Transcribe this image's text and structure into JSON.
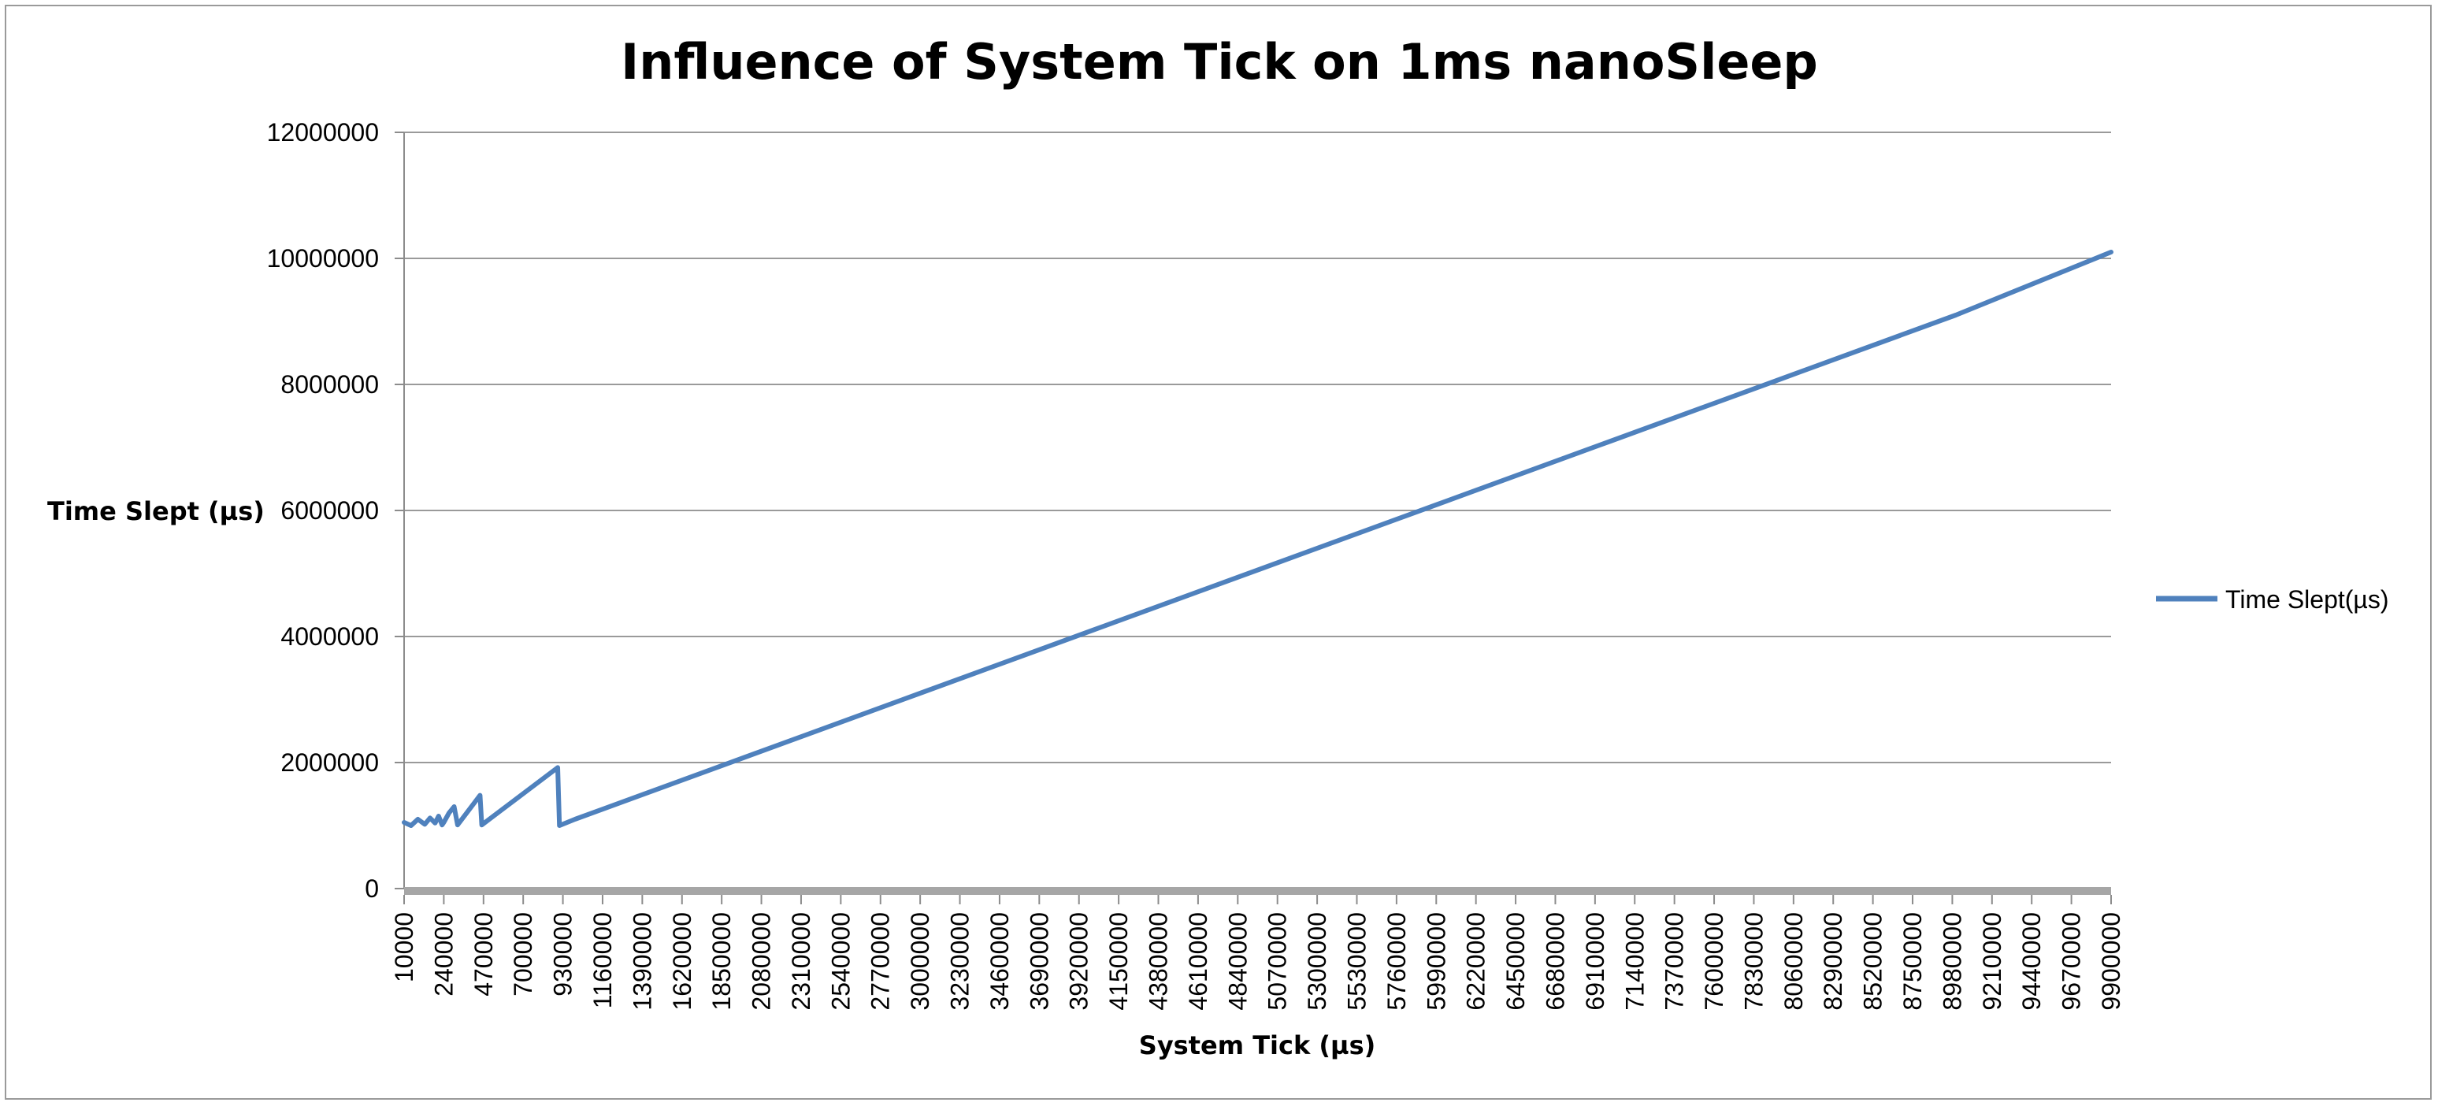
{
  "chart_data": {
    "type": "line",
    "title": "Influence of System Tick on 1ms nanoSleep",
    "xlabel": "System Tick (µs)",
    "ylabel": "Time Slept (µs)",
    "ylim": [
      0,
      12000000
    ],
    "xlim": [
      10000,
      9900000
    ],
    "grid": "horizontal",
    "legend": "right",
    "y_ticks": [
      "0",
      "2000000",
      "4000000",
      "6000000",
      "8000000",
      "10000000",
      "12000000"
    ],
    "x_ticks": [
      "10000",
      "240000",
      "470000",
      "700000",
      "930000",
      "1160000",
      "1390000",
      "1620000",
      "1850000",
      "2080000",
      "2310000",
      "2540000",
      "2770000",
      "3000000",
      "3230000",
      "3460000",
      "3690000",
      "3920000",
      "4150000",
      "4380000",
      "4610000",
      "4840000",
      "5070000",
      "5300000",
      "5530000",
      "5760000",
      "5990000",
      "6220000",
      "6450000",
      "6680000",
      "6910000",
      "7140000",
      "7370000",
      "7600000",
      "7830000",
      "8060000",
      "8290000",
      "8520000",
      "8750000",
      "8980000",
      "9210000",
      "9440000",
      "9670000",
      "9900000"
    ],
    "series": [
      {
        "name": "Time Slept(µs)",
        "color": "#4f81bd",
        "x": [
          10000,
          50000,
          90000,
          130000,
          160000,
          190000,
          210000,
          230000,
          240000,
          270000,
          300000,
          320000,
          450000,
          460000,
          900000,
          910000,
          1000000,
          2000000,
          3000000,
          4000000,
          5000000,
          6000000,
          7000000,
          8000000,
          9000000,
          9900000
        ],
        "values": [
          1050000,
          1000000,
          1100000,
          1020000,
          1120000,
          1040000,
          1150000,
          1010000,
          1050000,
          1200000,
          1300000,
          1010000,
          1480000,
          1010000,
          1920000,
          1000000,
          1100000,
          2100000,
          3100000,
          4100000,
          5100000,
          6100000,
          7100000,
          8100000,
          9100000,
          10100000
        ]
      }
    ]
  }
}
